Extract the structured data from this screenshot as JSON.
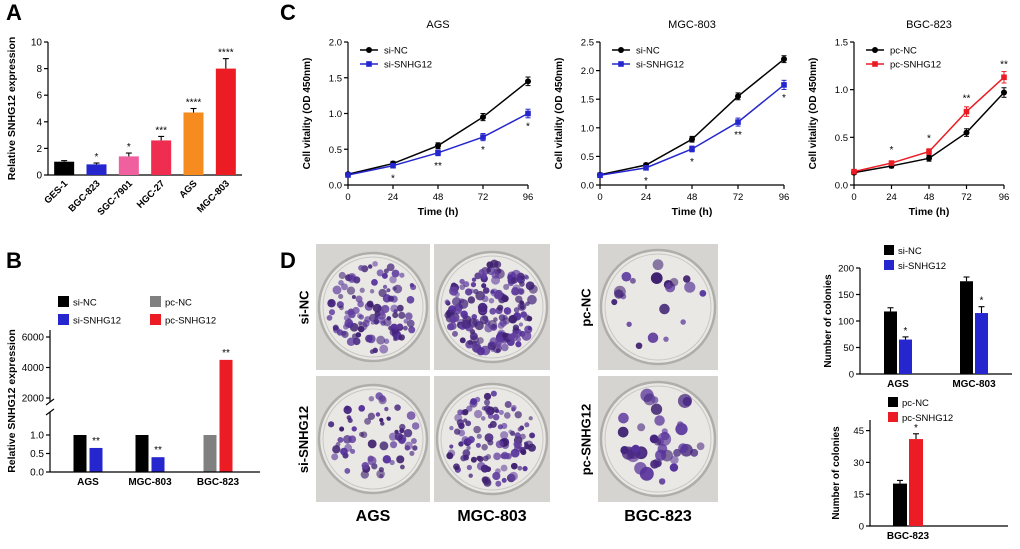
{
  "figure": {
    "background": "#ffffff",
    "panel_labels": {
      "a": "A",
      "b": "B",
      "c": "C",
      "d": "D"
    }
  },
  "colors": {
    "black": "#000000",
    "blue": "#2626cf",
    "gray": "#808080",
    "red": "#ec1c24",
    "orange": "#f68b1f",
    "pink": "#f0609e",
    "crimson": "#ee2d51",
    "colony": "#53309c",
    "photo_bg": "#d6d4d1",
    "dish_fill": "#eae8e4",
    "dish_rim": "#b0aeaa"
  },
  "chart_data": [
    {
      "id": "panelA",
      "type": "bar",
      "title": "",
      "ylabel": "Relative SNHG12 expression",
      "ylim": [
        0,
        10
      ],
      "yticks": [
        0,
        2,
        4,
        6,
        8,
        10
      ],
      "ytick_labels": [
        "0",
        "2",
        "4",
        "6",
        "8",
        "10"
      ],
      "categories": [
        "GES-1",
        "BGC-823",
        "SGC-7901",
        "HGC-27",
        "AGS",
        "MGC-803"
      ],
      "series": [
        {
          "name": "",
          "colors": [
            "black",
            "blue",
            "pink",
            "crimson",
            "orange",
            "red"
          ],
          "values": [
            1.0,
            0.8,
            1.4,
            2.6,
            4.7,
            8.0
          ],
          "errors": [
            0.08,
            0.1,
            0.25,
            0.3,
            0.3,
            0.75
          ],
          "sig": [
            "",
            "*",
            "*",
            "***",
            "****",
            "****"
          ]
        }
      ]
    },
    {
      "id": "panelB",
      "type": "bar-broken",
      "ylabel": "Relative SNHG12 expression",
      "lower": {
        "ylim": [
          0,
          1.0
        ],
        "yticks": [
          0,
          0.5,
          1.0
        ],
        "ytick_labels": [
          "0.0",
          "0.5",
          "1.0"
        ]
      },
      "upper": {
        "ylim": [
          2000,
          6000
        ],
        "yticks": [
          2000,
          4000,
          6000
        ],
        "ytick_labels": [
          "2000",
          "4000",
          "6000"
        ]
      },
      "categories": [
        "AGS",
        "MGC-803",
        "BGC-823"
      ],
      "legend": [
        {
          "label": "si-NC",
          "color": "black"
        },
        {
          "label": "si-SNHG12",
          "color": "blue"
        },
        {
          "label": "pc-NC",
          "color": "gray"
        },
        {
          "label": "pc-SNHG12",
          "color": "red"
        }
      ],
      "groups": [
        {
          "category": "AGS",
          "bars": [
            {
              "color": "black",
              "value": 1.0,
              "sig": ""
            },
            {
              "color": "blue",
              "value": 0.65,
              "sig": "**"
            }
          ]
        },
        {
          "category": "MGC-803",
          "bars": [
            {
              "color": "black",
              "value": 1.0,
              "sig": ""
            },
            {
              "color": "blue",
              "value": 0.4,
              "sig": "**"
            }
          ]
        },
        {
          "category": "BGC-823",
          "bars": [
            {
              "color": "gray",
              "value": 1.0,
              "sig": ""
            },
            {
              "color": "red",
              "value": 4500,
              "sig": "**"
            }
          ]
        }
      ]
    },
    {
      "id": "panelC-AGS",
      "type": "line",
      "title": "AGS",
      "xlabel": "Time (h)",
      "ylabel": "Cell vitality (OD 450nm)",
      "x": [
        0,
        24,
        48,
        72,
        96
      ],
      "xtick_labels": [
        "0",
        "24",
        "48",
        "72",
        "96"
      ],
      "ylim": [
        0,
        2.0
      ],
      "yticks": [
        0,
        0.5,
        1.0,
        1.5,
        2.0
      ],
      "ytick_labels": [
        "0.0",
        "0.5",
        "1.0",
        "1.5",
        "2.0"
      ],
      "series": [
        {
          "name": "si-NC",
          "color": "black",
          "marker": "circle",
          "values": [
            0.15,
            0.3,
            0.55,
            0.95,
            1.45
          ],
          "errors": [
            0.02,
            0.03,
            0.04,
            0.05,
            0.06
          ]
        },
        {
          "name": "si-SNHG12",
          "color": "blue",
          "marker": "square",
          "values": [
            0.14,
            0.27,
            0.45,
            0.67,
            1.0
          ],
          "errors": [
            0.02,
            0.03,
            0.04,
            0.05,
            0.06
          ]
        }
      ],
      "sig": [
        "",
        "*",
        "**",
        "*",
        "*"
      ],
      "sig_side": "below"
    },
    {
      "id": "panelC-MGC-803",
      "type": "line",
      "title": "MGC-803",
      "xlabel": "Time (h)",
      "ylabel": "Cell vitality (OD 450nm)",
      "x": [
        0,
        24,
        48,
        72,
        96
      ],
      "xtick_labels": [
        "0",
        "24",
        "48",
        "72",
        "96"
      ],
      "ylim": [
        0,
        2.5
      ],
      "yticks": [
        0,
        0.5,
        1.0,
        1.5,
        2.0,
        2.5
      ],
      "ytick_labels": [
        "0.0",
        "0.5",
        "1.0",
        "1.5",
        "2.0",
        "2.5"
      ],
      "series": [
        {
          "name": "si-NC",
          "color": "black",
          "marker": "circle",
          "values": [
            0.18,
            0.35,
            0.8,
            1.55,
            2.2
          ],
          "errors": [
            0.02,
            0.03,
            0.05,
            0.06,
            0.06
          ]
        },
        {
          "name": "si-SNHG12",
          "color": "blue",
          "marker": "square",
          "values": [
            0.17,
            0.3,
            0.63,
            1.1,
            1.75
          ],
          "errors": [
            0.02,
            0.03,
            0.05,
            0.07,
            0.08
          ]
        }
      ],
      "sig": [
        "",
        "*",
        "*",
        "**",
        "*"
      ],
      "sig_side": "below"
    },
    {
      "id": "panelC-BGC-823",
      "type": "line",
      "title": "BGC-823",
      "xlabel": "Time (h)",
      "ylabel": "Cell vitality (OD 450nm)",
      "x": [
        0,
        24,
        48,
        72,
        96
      ],
      "xtick_labels": [
        "0",
        "24",
        "48",
        "72",
        "96"
      ],
      "ylim": [
        0,
        1.5
      ],
      "yticks": [
        0,
        0.5,
        1.0,
        1.5
      ],
      "ytick_labels": [
        "0.0",
        "0.5",
        "1.0",
        "1.5"
      ],
      "series": [
        {
          "name": "pc-NC",
          "color": "black",
          "marker": "circle",
          "values": [
            0.13,
            0.2,
            0.28,
            0.55,
            0.97
          ],
          "errors": [
            0.02,
            0.02,
            0.03,
            0.04,
            0.05
          ]
        },
        {
          "name": "pc-SNHG12",
          "color": "red",
          "marker": "square",
          "values": [
            0.14,
            0.23,
            0.35,
            0.77,
            1.13
          ],
          "errors": [
            0.02,
            0.02,
            0.03,
            0.05,
            0.06
          ]
        }
      ],
      "sig": [
        "",
        "*",
        "*",
        "**",
        "**"
      ],
      "sig_side": "above"
    },
    {
      "id": "panelD-si",
      "type": "bar",
      "title": "",
      "ylabel": "Number of colonies",
      "ylim": [
        0,
        200
      ],
      "yticks": [
        0,
        50,
        100,
        150,
        200
      ],
      "ytick_labels": [
        "0",
        "50",
        "100",
        "150",
        "200"
      ],
      "categories": [
        "AGS",
        "MGC-803"
      ],
      "legend": [
        {
          "label": "si-NC",
          "color": "black"
        },
        {
          "label": "si-SNHG12",
          "color": "blue"
        }
      ],
      "series": [
        {
          "name": "si-NC",
          "color": "black",
          "values": [
            118,
            175
          ],
          "errors": [
            7,
            8
          ],
          "sig": [
            "",
            ""
          ]
        },
        {
          "name": "si-SNHG12",
          "color": "blue",
          "values": [
            65,
            115
          ],
          "errors": [
            5,
            12
          ],
          "sig": [
            "*",
            "*"
          ]
        }
      ]
    },
    {
      "id": "panelD-pc",
      "type": "bar",
      "title": "",
      "ylabel": "Number of colonies",
      "ylim": [
        0,
        50
      ],
      "yticks": [
        0,
        15,
        30,
        45
      ],
      "ytick_labels": [
        "0",
        "15",
        "30",
        "45"
      ],
      "categories": [
        "BGC-823"
      ],
      "legend": [
        {
          "label": "pc-NC",
          "color": "black"
        },
        {
          "label": "pc-SNHG12",
          "color": "red"
        }
      ],
      "series": [
        {
          "name": "pc-NC",
          "color": "black",
          "values": [
            20
          ],
          "errors": [
            1.5
          ],
          "sig": [
            ""
          ]
        },
        {
          "name": "pc-SNHG12",
          "color": "red",
          "values": [
            41
          ],
          "errors": [
            2.5
          ],
          "sig": [
            "*"
          ]
        }
      ]
    }
  ],
  "panelD_images": {
    "row_labels_si": [
      "si-NC",
      "si-SNHG12"
    ],
    "row_labels_pc": [
      "pc-NC",
      "pc-SNHG12"
    ],
    "col_labels": [
      "AGS",
      "MGC-803",
      "BGC-823"
    ],
    "dishes": [
      {
        "name": "si-NC-AGS",
        "colonies": 118,
        "min_r": 2,
        "max_r": 4.5,
        "seed": 11
      },
      {
        "name": "si-NC-MGC-803",
        "colonies": 175,
        "min_r": 2,
        "max_r": 5,
        "seed": 22
      },
      {
        "name": "pc-NC-BGC-823",
        "colonies": 20,
        "min_r": 2.5,
        "max_r": 6,
        "seed": 33
      },
      {
        "name": "si-SNHG12-AGS",
        "colonies": 65,
        "min_r": 2,
        "max_r": 4.5,
        "seed": 44
      },
      {
        "name": "si-SNHG12-MGC-803",
        "colonies": 115,
        "min_r": 2,
        "max_r": 4.5,
        "seed": 55
      },
      {
        "name": "pc-SNHG12-BGC-823",
        "colonies": 41,
        "min_r": 3,
        "max_r": 7,
        "seed": 66
      }
    ]
  }
}
